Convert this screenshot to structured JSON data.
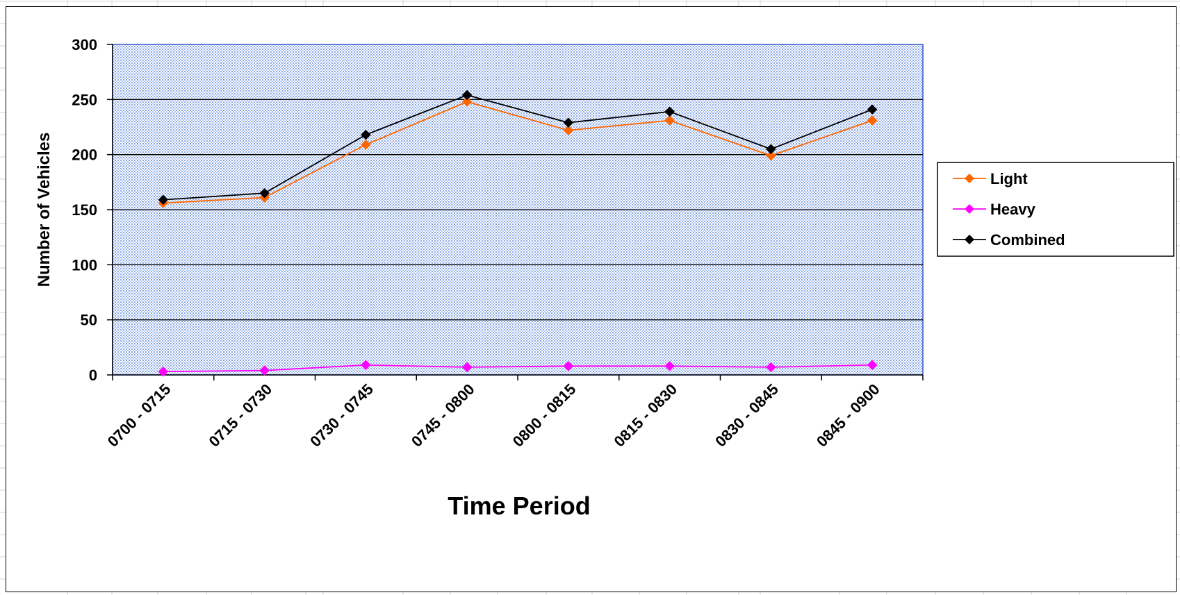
{
  "chart_data": {
    "type": "line",
    "title": "",
    "xlabel": "Time Period",
    "ylabel": "Number of Vehicles",
    "categories": [
      "0700 - 0715",
      "0715 - 0730",
      "0730 - 0745",
      "0745 - 0800",
      "0800 - 0815",
      "0815 - 0830",
      "0830 - 0845",
      "0845 - 0900"
    ],
    "ylim": [
      0,
      300
    ],
    "yticks": [
      0,
      50,
      100,
      150,
      200,
      250,
      300
    ],
    "grid": "horizontal",
    "legend_position": "right",
    "plot_background": "#c8d7ff",
    "series": [
      {
        "name": "Light",
        "color": "#ff6600",
        "marker": "diamond",
        "values": [
          156,
          161,
          209,
          248,
          222,
          231,
          199,
          231
        ]
      },
      {
        "name": "Heavy",
        "color": "#ff00ff",
        "marker": "diamond",
        "values": [
          3,
          4,
          9,
          7,
          8,
          8,
          7,
          9
        ]
      },
      {
        "name": "Combined",
        "color": "#000000",
        "marker": "diamond",
        "values": [
          159,
          165,
          218,
          254,
          229,
          239,
          205,
          241
        ]
      }
    ]
  }
}
